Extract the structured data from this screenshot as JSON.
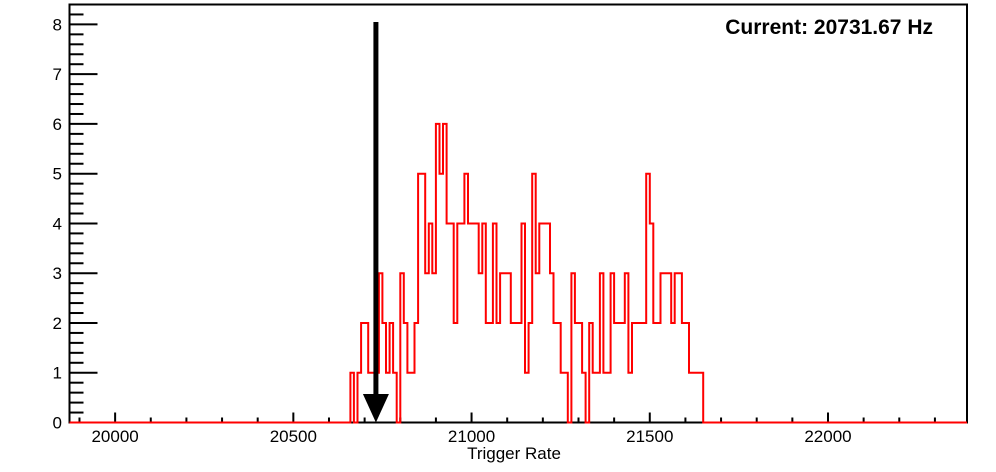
{
  "annotation": {
    "current_label": "Current: 20731.67 Hz",
    "current_value_hz": 20731.67
  },
  "chart_data": {
    "type": "bar",
    "subtype": "step-histogram",
    "title": "",
    "xlabel": "Trigger Rate",
    "ylabel": "",
    "xlim": [
      19872,
      22390
    ],
    "ylim": [
      0,
      8.4
    ],
    "grid": false,
    "legend": "none",
    "hist_color": "#ff0000",
    "axis_color": "#000000",
    "marker_arrow_color": "#000000",
    "marker_arrow_hz": 20731.67,
    "x_ticks": [
      {
        "value": 20000,
        "label": "20000"
      },
      {
        "value": 20500,
        "label": "20500"
      },
      {
        "value": 21000,
        "label": "21000"
      },
      {
        "value": 21500,
        "label": "21500"
      },
      {
        "value": 22000,
        "label": "22000"
      }
    ],
    "y_ticks": [
      {
        "value": 0,
        "label": "0"
      },
      {
        "value": 1,
        "label": "1"
      },
      {
        "value": 2,
        "label": "2"
      },
      {
        "value": 3,
        "label": "3"
      },
      {
        "value": 4,
        "label": "4"
      },
      {
        "value": 5,
        "label": "5"
      },
      {
        "value": 6,
        "label": "6"
      },
      {
        "value": 7,
        "label": "7"
      },
      {
        "value": 8,
        "label": "8"
      }
    ],
    "x_minor_step": 100,
    "y_minor_step": 0.2,
    "bin_width_hz": 10,
    "bin_start_hz": 20650,
    "counts": [
      0,
      1,
      0,
      1,
      2,
      2,
      1,
      1,
      1,
      3,
      2,
      1,
      2,
      1,
      0,
      3,
      2,
      1,
      1,
      2,
      5,
      5,
      3,
      4,
      3,
      6,
      5,
      6,
      4,
      4,
      2,
      4,
      4,
      5,
      4,
      4,
      4,
      3,
      4,
      2,
      2,
      4,
      2,
      3,
      3,
      3,
      2,
      2,
      2,
      4,
      1,
      2,
      5,
      3,
      4,
      4,
      4,
      3,
      2,
      2,
      1,
      1,
      0,
      3,
      2,
      2,
      1,
      0,
      2,
      1,
      1,
      3,
      1,
      1,
      3,
      2,
      2,
      2,
      3,
      1,
      2,
      2,
      2,
      2,
      5,
      4,
      2,
      2,
      3,
      3,
      3,
      2,
      3,
      3,
      2,
      2,
      1,
      1,
      1,
      1
    ]
  }
}
